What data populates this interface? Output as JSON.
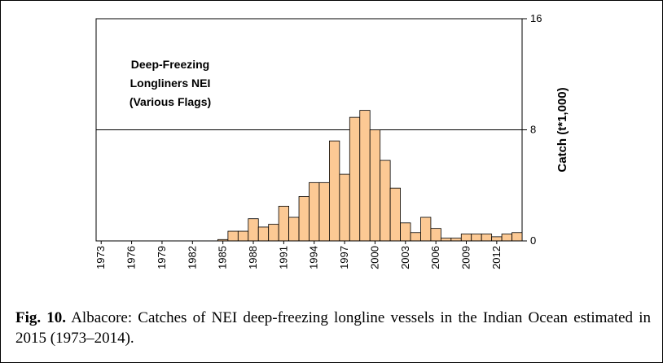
{
  "chart_data": {
    "type": "bar",
    "annotation": [
      "Deep-Freezing",
      "Longliners NEI",
      "(Various Flags)"
    ],
    "y_label": "Catch (t*1,000)",
    "categories": [
      "1973",
      null,
      null,
      "1976",
      null,
      null,
      "1979",
      null,
      null,
      "1982",
      null,
      null,
      "1985",
      null,
      null,
      "1988",
      null,
      null,
      "1991",
      null,
      null,
      "1994",
      null,
      null,
      "1997",
      null,
      null,
      "2000",
      null,
      null,
      "2003",
      null,
      null,
      "2006",
      null,
      null,
      "2009",
      null,
      null,
      "2012",
      null,
      null
    ],
    "values": [
      0,
      0,
      0,
      0,
      0,
      0,
      0,
      0,
      0,
      0,
      0,
      0,
      0.1,
      0.7,
      0.7,
      1.6,
      1.0,
      1.2,
      2.5,
      1.7,
      3.2,
      4.2,
      4.2,
      7.2,
      4.8,
      8.9,
      9.4,
      8.0,
      5.8,
      3.8,
      1.3,
      0.6,
      1.7,
      0.9,
      0.2,
      0.2,
      0.5,
      0.5,
      0.5,
      0.3,
      0.5,
      0.6
    ],
    "color": "#fcc994",
    "ylim": [
      0,
      16
    ],
    "yticks": [
      0,
      8,
      16
    ],
    "y_axis_side": "right",
    "grid": true
  },
  "caption": {
    "label": "Fig. 10.",
    "text": "Albacore: Catches of NEI deep-freezing longline vessels in the Indian Ocean estimated in 2015 (1973–2014)."
  }
}
